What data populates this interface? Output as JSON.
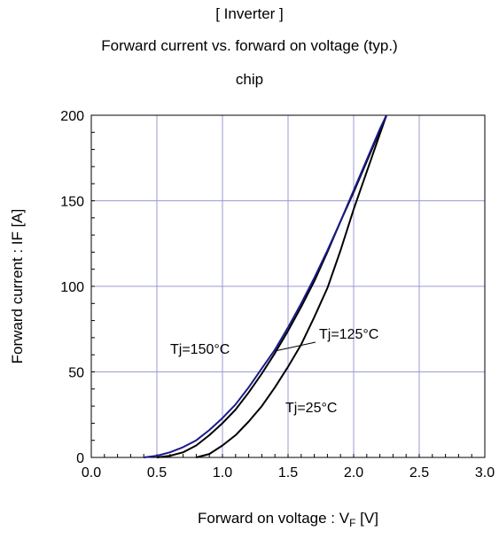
{
  "title_lines": [
    "[ Inverter ]",
    "Forward current  vs.  forward on voltage  (typ.)",
    "chip"
  ],
  "chart_data": {
    "type": "line",
    "xlabel_main": "Forward on voltage : V",
    "xlabel_sub": "F",
    "xlabel_unit": " [V]",
    "ylabel": "Forward current : IF [A]",
    "xlim": [
      0,
      3
    ],
    "ylim": [
      0,
      200
    ],
    "xticks": [
      "0.0",
      "0.5",
      "1.0",
      "1.5",
      "2.0",
      "2.5",
      "3.0"
    ],
    "yticks": [
      "0",
      "50",
      "100",
      "150",
      "200"
    ],
    "grid": true,
    "series": [
      {
        "name": "Tj=25°C",
        "color": "#000000",
        "x": [
          0.8,
          0.9,
          1.0,
          1.1,
          1.2,
          1.3,
          1.4,
          1.5,
          1.6,
          1.7,
          1.8,
          1.9,
          2.0,
          2.1,
          2.2,
          2.25
        ],
        "y": [
          0,
          2,
          7,
          13,
          21,
          30,
          41,
          53,
          66,
          82,
          99,
          121,
          145,
          167,
          189,
          200
        ]
      },
      {
        "name": "Tj=125°C",
        "color": "#000000",
        "x": [
          0.5,
          0.6,
          0.7,
          0.8,
          0.9,
          1.0,
          1.1,
          1.2,
          1.3,
          1.4,
          1.5,
          1.6,
          1.7,
          1.8,
          1.9,
          2.0,
          2.1,
          2.2,
          2.25
        ],
        "y": [
          0,
          1,
          3,
          7,
          13,
          20,
          28,
          38,
          49,
          61,
          74,
          88,
          103,
          120,
          138,
          155,
          173,
          191,
          200
        ]
      },
      {
        "name": "Tj=150°C",
        "color": "#1a1a8c",
        "x": [
          0.4,
          0.5,
          0.6,
          0.7,
          0.8,
          0.9,
          1.0,
          1.1,
          1.2,
          1.3,
          1.4,
          1.5,
          1.6,
          1.7,
          1.8,
          1.9,
          2.0,
          2.1,
          2.2,
          2.25
        ],
        "y": [
          0,
          1,
          3,
          6,
          10,
          16,
          23,
          31,
          41,
          52,
          63,
          76,
          90,
          105,
          121,
          138,
          156,
          174,
          192,
          200
        ]
      }
    ],
    "annotations": [
      {
        "text": "Tj=150°C",
        "series": "Tj=150°C"
      },
      {
        "text": "Tj=125°C",
        "series": "Tj=125°C"
      },
      {
        "text": "Tj=25°C",
        "series": "Tj=25°C"
      }
    ]
  }
}
